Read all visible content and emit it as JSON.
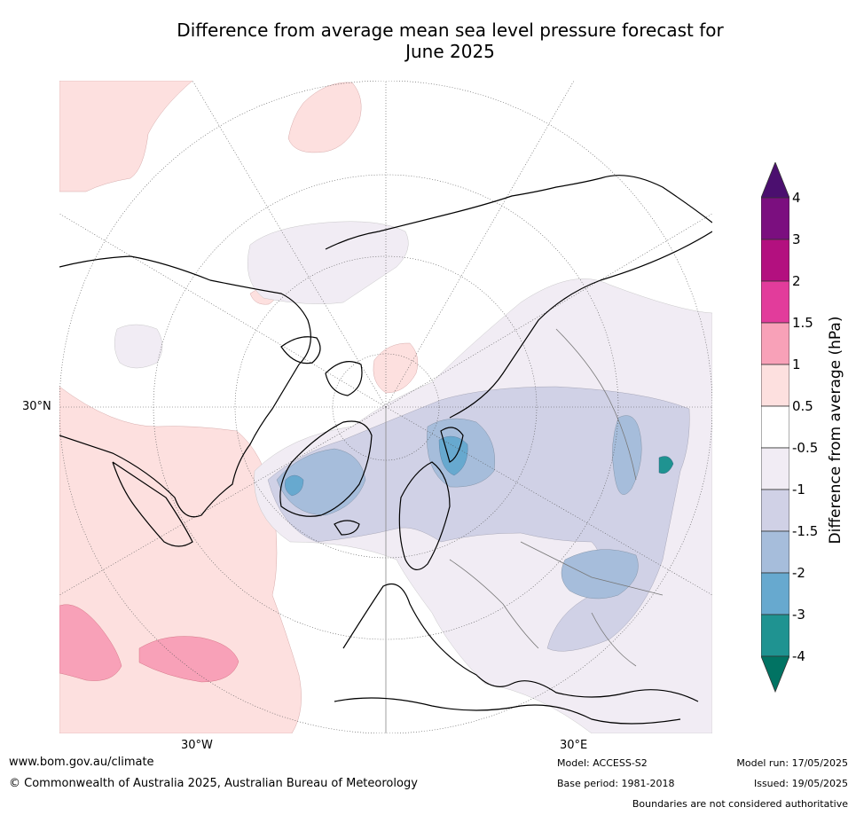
{
  "title_line1": "Difference from average mean sea level pressure forecast for",
  "title_line2": "June 2025",
  "map_labels": {
    "lat": "30°N",
    "lon_w": "30°W",
    "lon_e": "30°E"
  },
  "colorbar": {
    "title": "Difference from average (hPa)",
    "ticks": [
      "4",
      "3",
      "2",
      "1.5",
      "1",
      "0.5",
      "-0.5",
      "-1",
      "-1.5",
      "-2",
      "-3",
      "-4"
    ],
    "colors": [
      "#4b0f6f",
      "#7b0f7f",
      "#b3107f",
      "#e23c9b",
      "#f8a1b8",
      "#fde0df",
      "#ffffff",
      "#f1ecf4",
      "#d0d1e6",
      "#a6bddb",
      "#67a9cf",
      "#1f9391",
      "#017363"
    ]
  },
  "footer": {
    "website": "www.bom.gov.au/climate",
    "copyright": "© Commonwealth of Australia 2025, Australian Bureau of Meteorology",
    "model": "Model: ACCESS-S2",
    "base_period": "Base period: 1981-2018",
    "model_run": "Model run: 17/05/2025",
    "issued": "Issued: 19/05/2025",
    "disclaimer": "Boundaries are not considered authoritative"
  }
}
